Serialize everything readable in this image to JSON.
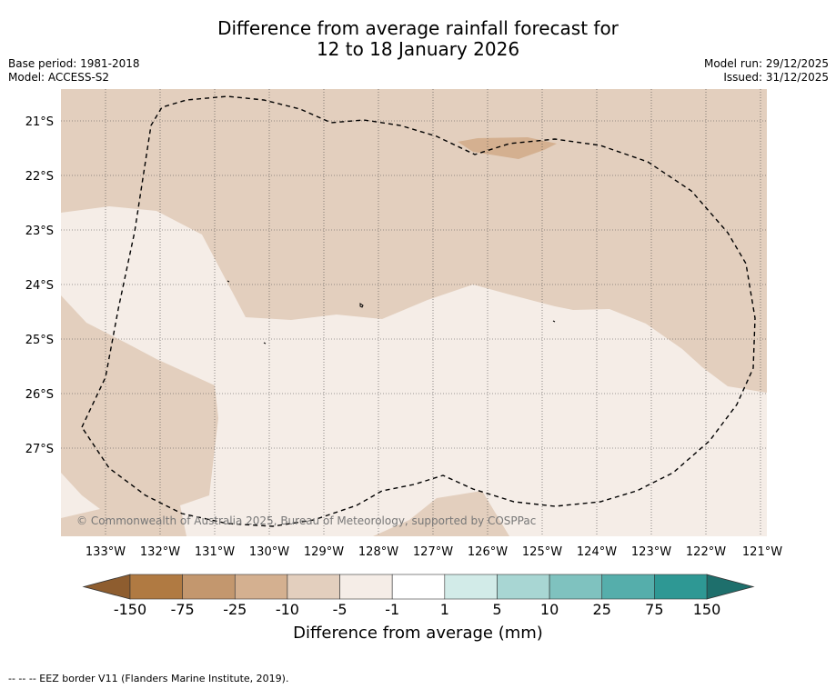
{
  "title": {
    "line1": "Difference from average rainfall forecast for",
    "line2": "12 to 18 January 2026"
  },
  "meta": {
    "base_period": "Base period: 1981-2018",
    "model": "Model: ACCESS-S2",
    "model_run": "Model run: 29/12/2025",
    "issued": "Issued: 31/12/2025"
  },
  "map": {
    "lat_labels": [
      "21°S",
      "22°S",
      "23°S",
      "24°S",
      "25°S",
      "26°S",
      "27°S"
    ],
    "lon_labels": [
      "133°W",
      "132°W",
      "131°W",
      "130°W",
      "129°W",
      "128°W",
      "127°W",
      "126°W",
      "125°W",
      "124°W",
      "123°W",
      "122°W",
      "121°W"
    ],
    "copyright": "© Commonwealth of Australia 2025, Bureau of Meteorology, supported by COSPPac",
    "colors": {
      "dry_light": "#e3cfbe",
      "near_normal": "#f5ede7",
      "dry_mid": "#d4b090"
    }
  },
  "colorbar": {
    "ticks": [
      "-150",
      "-75",
      "-25",
      "-10",
      "-5",
      "-1",
      "1",
      "5",
      "10",
      "25",
      "75",
      "150"
    ],
    "colors": [
      "#8e5d2f",
      "#b07a42",
      "#c3976e",
      "#d4b090",
      "#e3cfbe",
      "#f5ede7",
      "#ffffff",
      "#d2ebe8",
      "#a8d6d3",
      "#7fc2bf",
      "#55aeab",
      "#2e9894",
      "#1e6f6c"
    ],
    "label": "Difference from average (mm)"
  },
  "footer": "--  --  -- EEZ border V11 (Flanders Marine Institute, 2019)."
}
